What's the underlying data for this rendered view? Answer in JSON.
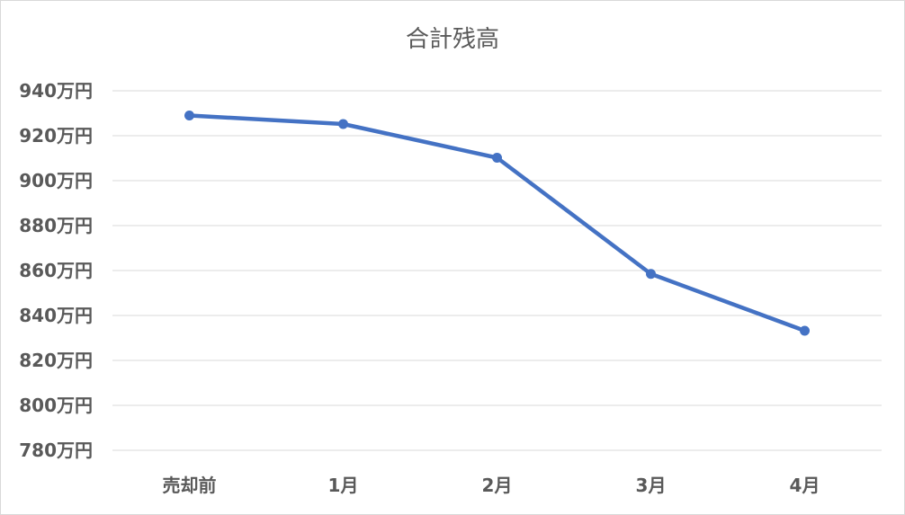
{
  "chart_data": {
    "type": "line",
    "title": "合計残高",
    "categories": [
      "売却前",
      "1月",
      "2月",
      "3月",
      "4月"
    ],
    "series": [
      {
        "values": [
          9290000,
          9252000,
          9102000,
          8585000,
          8332000
        ],
        "color": "#4472c4"
      }
    ],
    "ylim": [
      7800000,
      9400000
    ],
    "yticks": [
      {
        "value": 9400000,
        "label": "940万円"
      },
      {
        "value": 9200000,
        "label": "920万円"
      },
      {
        "value": 9000000,
        "label": "900万円"
      },
      {
        "value": 8800000,
        "label": "880万円"
      },
      {
        "value": 8600000,
        "label": "860万円"
      },
      {
        "value": 8400000,
        "label": "840万円"
      },
      {
        "value": 8200000,
        "label": "820万円"
      },
      {
        "value": 8000000,
        "label": "800万円"
      },
      {
        "value": 7800000,
        "label": "780万円"
      }
    ],
    "grid": true,
    "legend": "none"
  }
}
